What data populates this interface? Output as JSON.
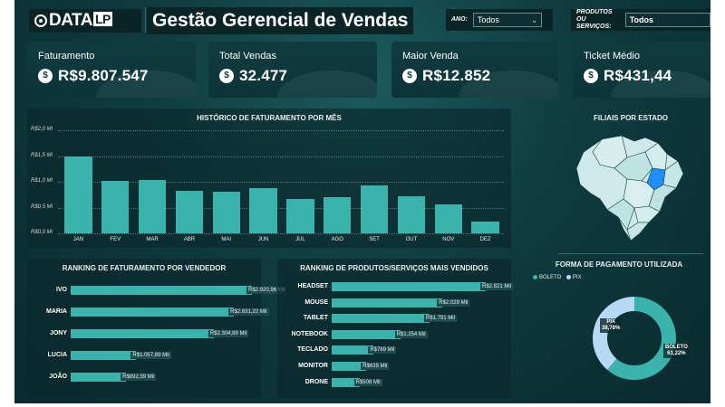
{
  "header": {
    "logo_main": "DATA",
    "logo_suffix": "LP",
    "title": "Gestão Gerencial de Vendas",
    "filter_year": {
      "label": "ANO:",
      "value": "Todos"
    },
    "filter_product": {
      "label_line1": "PRODUTOS",
      "label_line2": "ou SERVIÇOS:",
      "value": "Todos"
    }
  },
  "kpis": [
    {
      "label": "Faturamento",
      "value": "R$9.807.547",
      "icon": "dollar-icon"
    },
    {
      "label": "Total Vendas",
      "value": "32.477",
      "icon": "dollar-icon"
    },
    {
      "label": "Maior Venda",
      "value": "R$12.852",
      "icon": "dollar-icon"
    },
    {
      "label": "Ticket Médio",
      "value": "R$431,44",
      "icon": "dollar-icon"
    }
  ],
  "chart_data": [
    {
      "type": "bar",
      "title": "HISTÓRICO DE FATURAMENTO POR MÊS",
      "categories": [
        "JAN",
        "FEV",
        "MAR",
        "ABR",
        "MAI",
        "JUN",
        "JUL",
        "AGO",
        "SET",
        "OUT",
        "NOV",
        "DEZ"
      ],
      "values": [
        1.5,
        1.02,
        1.03,
        0.82,
        0.8,
        0.88,
        0.67,
        0.7,
        0.93,
        0.72,
        0.57,
        0.22
      ],
      "ylabel": "",
      "yticks": [
        "R$0,0 Mi",
        "R$0,5 Mi",
        "R$1,0 Mi",
        "R$1,5 Mi",
        "R$2,0 Mi"
      ],
      "ylim": [
        0,
        2.0
      ],
      "grid": true
    },
    {
      "type": "bar",
      "orientation": "horizontal",
      "title": "RANKING DE FATURAMENTO POR VENDEDOR",
      "categories": [
        "IVO",
        "MARIA",
        "JONY",
        "LUCIA",
        "JOÃO"
      ],
      "values": [
        2920.96,
        2631.22,
        2304.89,
        1057.89,
        892.59
      ],
      "labels": [
        "R$2.920,96 Mil",
        "R$2.631,22 Mil",
        "R$2.304,89 Mil",
        "R$1.057,89 Mil",
        "R$892,59 Mil"
      ]
    },
    {
      "type": "bar",
      "orientation": "horizontal",
      "title": "RANKING DE PRODUTOS/SERVIÇOS MAIS VENDIDOS",
      "categories": [
        "HEADSET",
        "MOUSE",
        "TABLET",
        "NOTEBOOK",
        "TECLADO",
        "MONITOR",
        "DRONE"
      ],
      "values": [
        2821,
        2029,
        1791,
        1254,
        769,
        635,
        508
      ],
      "labels": [
        "R$2.821 Mil",
        "R$2.029 Mil",
        "R$1.791 Mil",
        "R$1.254 Mil",
        "R$769 Mil",
        "R$635 Mil",
        "R$508 Mil"
      ]
    },
    {
      "type": "pie",
      "title": "FORMA DE PAGAMENTO UTILIZADA",
      "categories": [
        "BOLETO",
        "PIX"
      ],
      "values": [
        61.22,
        38.78
      ],
      "labels": [
        "61,22%",
        "38,78%"
      ],
      "colors": [
        "#3ab3ad",
        "#b9d8f3"
      ],
      "legend_position": "top-left"
    }
  ],
  "map": {
    "title": "FILIAIS POR ESTADO",
    "highlight_color": "#1e90ff",
    "base_color": "#cfe9ea"
  }
}
